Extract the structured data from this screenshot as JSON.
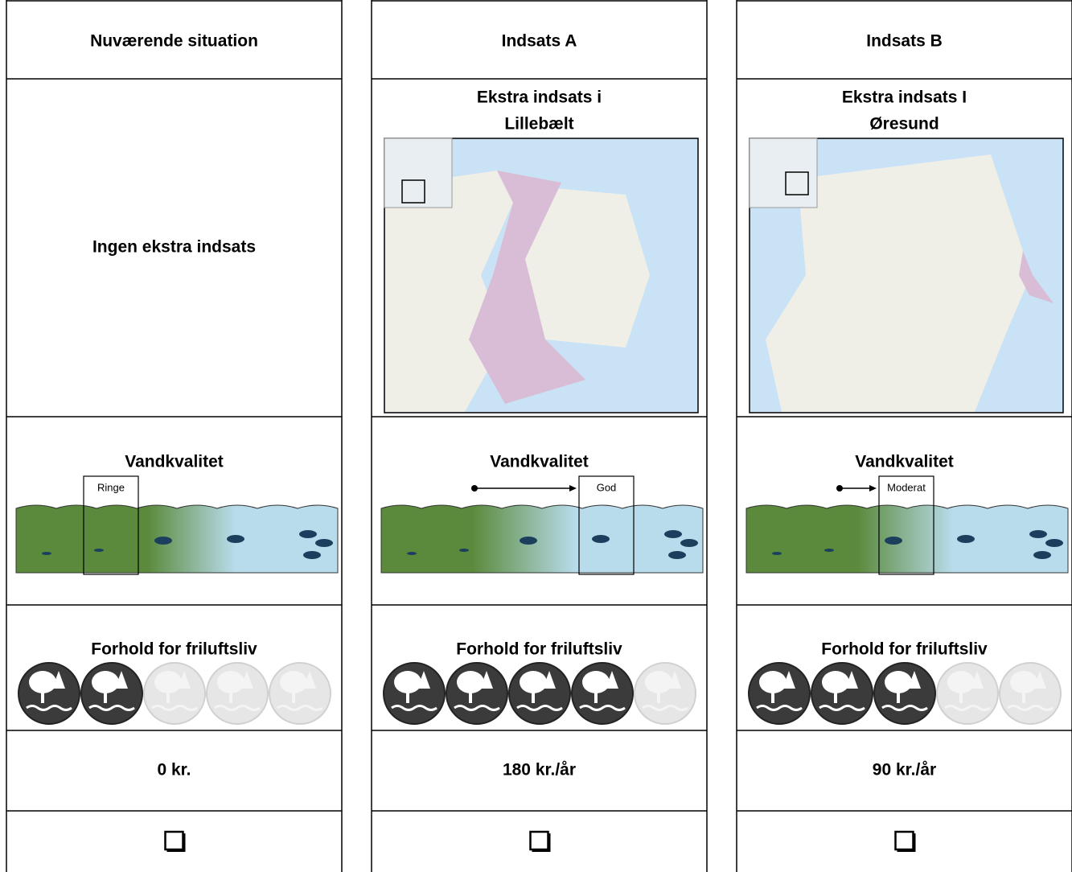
{
  "columns": [
    {
      "header": "Nuværende situation",
      "description": [
        "Ingen ekstra indsats"
      ],
      "quality_title": "Vandkvalitet",
      "quality_label": "Ringe",
      "quality_level": 1,
      "recreation_title": "Forhold for friluftsliv",
      "rating": 2,
      "rating_scale": 5,
      "price": "0 kr."
    },
    {
      "header": "Indsats A",
      "description": [
        "Ekstra indsats i",
        "Lillebælt"
      ],
      "quality_title": "Vandkvalitet",
      "quality_label": "God",
      "quality_level": 3,
      "recreation_title": "Forhold for friluftsliv",
      "rating": 4,
      "rating_scale": 5,
      "price": "180 kr./år"
    },
    {
      "header": "Indsats B",
      "description": [
        "Ekstra indsats I",
        "Øresund"
      ],
      "quality_title": "Vandkvalitet",
      "quality_label": "Moderat",
      "quality_level": 2,
      "recreation_title": "Forhold for friluftsliv",
      "rating": 3,
      "rating_scale": 5,
      "price": "90 kr./år"
    }
  ]
}
